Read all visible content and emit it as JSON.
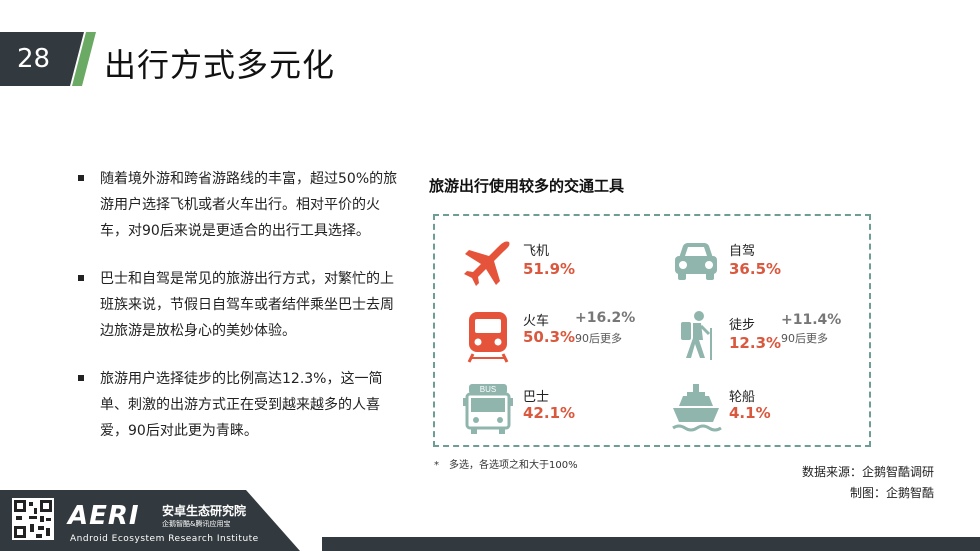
{
  "header": {
    "page_number": "28",
    "title": "出行方式多元化"
  },
  "bullets": [
    "随着境外游和跨省游路线的丰富，超过50%的旅游用户选择飞机或者火车出行。相对平价的火车，对90后来说是更适合的出行工具选择。",
    "巴士和自驾是常见的旅游出行方式，对繁忙的上班族来说，节假日自驾车或者结伴乘坐巴士去周边旅游是放松身心的美妙体验。",
    "旅游用户选择徒步的比例高达12.3%，这一简单、刺激的出游方式正在受到越来越多的人喜爱，90后对此更为青睐。"
  ],
  "panel": {
    "title": "旅游出行使用较多的交通工具",
    "items": [
      {
        "name": "飞机",
        "pct": "51.9%",
        "icon": "airplane-icon"
      },
      {
        "name": "自驾",
        "pct": "36.5%",
        "icon": "car-icon"
      },
      {
        "name": "火车",
        "pct": "50.3%",
        "delta": "+16.2%",
        "sub": "90后更多",
        "icon": "train-icon"
      },
      {
        "name": "徒步",
        "pct": "12.3%",
        "delta": "+11.4%",
        "sub": "90后更多",
        "icon": "hiker-icon"
      },
      {
        "name": "巴士",
        "pct": "42.1%",
        "icon": "bus-icon",
        "bus_label": "BUS"
      },
      {
        "name": "轮船",
        "pct": "4.1%",
        "icon": "ship-icon"
      }
    ],
    "footnote": "*　多选，各选项之和大于100%"
  },
  "source": "数据来源：企鹅智酷调研",
  "credit": "制图：企鹅智酷",
  "footer": {
    "logo": "AERI",
    "institute_cn": "安卓生态研究院",
    "institute_sub": "企鹅智酷&腾讯应用宝",
    "institute_en": "Android Ecosystem Research Institute"
  },
  "colors": {
    "accent_green": "#6aaa64",
    "teal_icon": "#8fb5ad",
    "red_pct": "#d9583e",
    "dark": "#333a3f"
  }
}
